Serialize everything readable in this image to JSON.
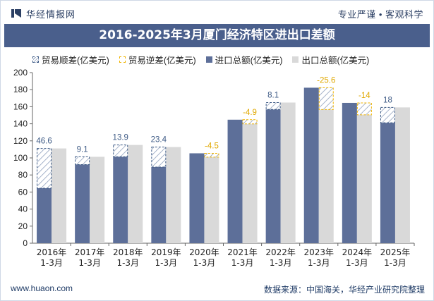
{
  "header": {
    "brand": "华经情报网",
    "slogan": "专业严谨 • 客观科学"
  },
  "chart_data": {
    "type": "bar",
    "title": "2016-2025年3月厦门经济特区进出口差额",
    "categories": [
      "2016年\n1-3月",
      "2017年\n1-3月",
      "2018年\n1-3月",
      "2019年\n1-3月",
      "2020年\n1-3月",
      "2021年\n1-3月",
      "2022年\n1-3月",
      "2023年\n1-3月",
      "2024年\n1-3月",
      "2025年\n1-3月"
    ],
    "series": [
      {
        "name": "进口总额(亿美元)",
        "values": [
          64.5,
          92.2,
          101.3,
          89.3,
          105.4,
          144.8,
          156.8,
          182.3,
          164.5,
          141.2
        ]
      },
      {
        "name": "出口总额(亿美元)",
        "values": [
          111.1,
          101.3,
          115.2,
          112.7,
          100.9,
          139.9,
          164.9,
          156.7,
          150.5,
          159.2
        ]
      }
    ],
    "balance": {
      "values": [
        46.6,
        9.1,
        13.9,
        23.4,
        -4.5,
        -4.9,
        8.1,
        -25.6,
        -14,
        18
      ],
      "labels": [
        "46.6",
        "9.1",
        "13.9",
        "23.4",
        "-4.5",
        "-4.9",
        "8.1",
        "-25.6",
        "-14",
        "18"
      ],
      "surplus_name": "贸易顺差(亿美元)",
      "deficit_name": "贸易逆差(亿美元)"
    },
    "ylim": [
      0,
      200
    ],
    "yticks": [
      0,
      20,
      40,
      60,
      80,
      100,
      120,
      140,
      160,
      180,
      200
    ],
    "grid": false,
    "legend_position": "top",
    "colors": {
      "import": "#5d6f99",
      "export": "#d9d9d9",
      "surplus_border": "#3d5a85",
      "surplus_label": "#3d5a85",
      "deficit_border": "#f0b400",
      "deficit_label": "#e0a800"
    }
  },
  "footer": {
    "website": "www.huaon.com",
    "source": "数据来源：中国海关，华经产业研究院整理"
  }
}
